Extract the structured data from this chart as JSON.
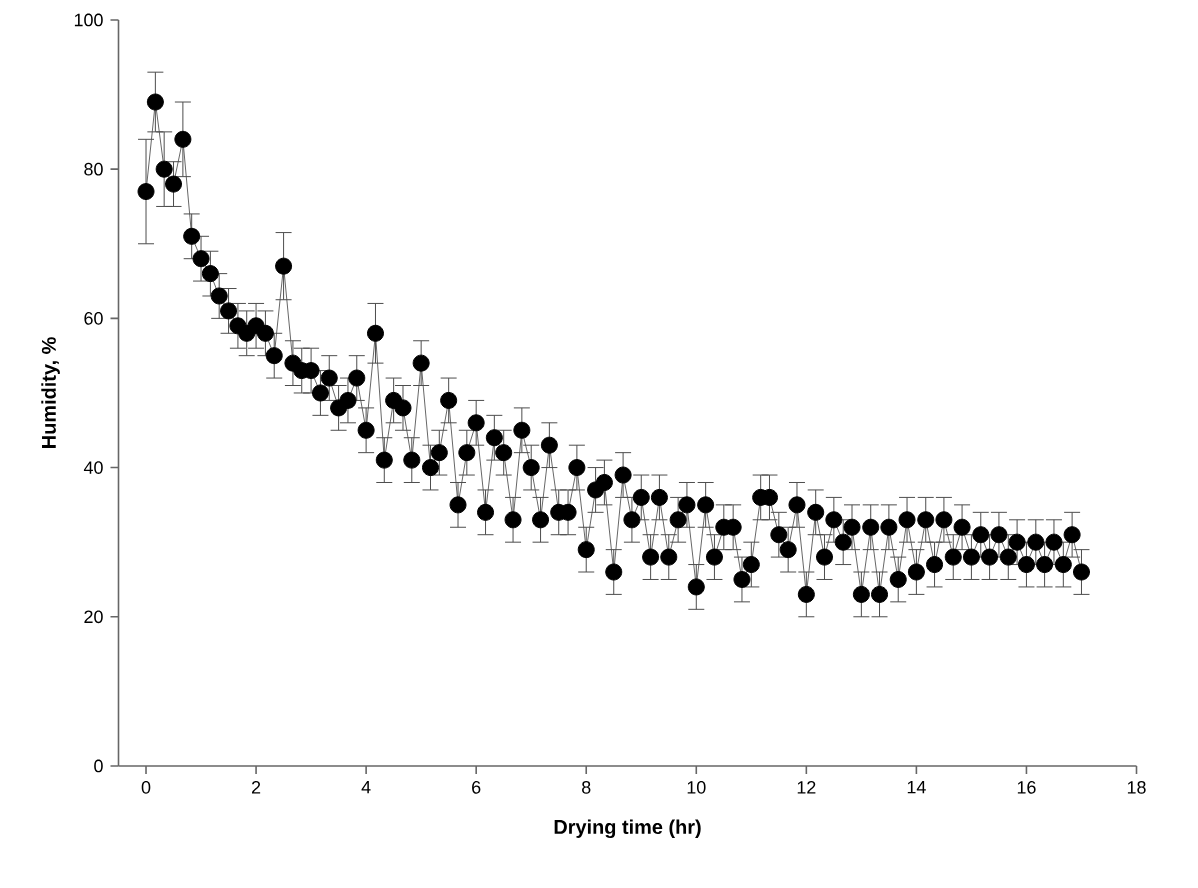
{
  "chart_data": {
    "type": "line",
    "xlabel": "Drying time (hr)",
    "ylabel": "Humidity, %",
    "x": [
      0.0,
      0.17,
      0.33,
      0.5,
      0.67,
      0.83,
      1.0,
      1.17,
      1.33,
      1.5,
      1.67,
      1.83,
      2.0,
      2.17,
      2.33,
      2.5,
      2.67,
      2.83,
      3.0,
      3.17,
      3.33,
      3.5,
      3.67,
      3.83,
      4.0,
      4.17,
      4.33,
      4.5,
      4.67,
      4.83,
      5.0,
      5.17,
      5.33,
      5.5,
      5.67,
      5.83,
      6.0,
      6.17,
      6.33,
      6.5,
      6.67,
      6.83,
      7.0,
      7.17,
      7.33,
      7.5,
      7.67,
      7.83,
      8.0,
      8.17,
      8.33,
      8.5,
      8.67,
      8.83,
      9.0,
      9.17,
      9.33,
      9.5,
      9.67,
      9.83,
      10.0,
      10.17,
      10.33,
      10.5,
      10.67,
      10.83,
      11.0,
      11.17,
      11.33,
      11.5,
      11.67,
      11.83,
      12.0,
      12.17,
      12.33,
      12.5,
      12.67,
      12.83,
      13.0,
      13.17,
      13.33,
      13.5,
      13.67,
      13.83,
      14.0,
      14.17,
      14.33,
      14.5,
      14.67,
      14.83,
      15.0,
      15.17,
      15.33,
      15.5,
      15.67,
      15.83,
      16.0,
      16.17,
      16.33,
      16.5,
      16.67,
      16.83,
      17.0
    ],
    "values": [
      77,
      89,
      80,
      78,
      84,
      71,
      68,
      66,
      63,
      61,
      59,
      58,
      59,
      58,
      55,
      67,
      54,
      53,
      53,
      50,
      52,
      48,
      49,
      52,
      45,
      58,
      41,
      49,
      48,
      41,
      54,
      40,
      42,
      49,
      35,
      42,
      46,
      34,
      44,
      42,
      33,
      45,
      40,
      33,
      43,
      34,
      34,
      40,
      29,
      37,
      38,
      26,
      39,
      33,
      36,
      28,
      36,
      28,
      33,
      35,
      24,
      35,
      28,
      32,
      32,
      25,
      27,
      36,
      36,
      31,
      29,
      35,
      23,
      34,
      28,
      33,
      30,
      32,
      23,
      32,
      23,
      32,
      25,
      33,
      26,
      33,
      27,
      33,
      28,
      32,
      28,
      31,
      28,
      31,
      28,
      30,
      27,
      30,
      27,
      30,
      27,
      31,
      26
    ],
    "errors": [
      7,
      4,
      5,
      3,
      5,
      3,
      3,
      3,
      3,
      3,
      3,
      3,
      3,
      3,
      3,
      4.5,
      3,
      3,
      3,
      3,
      3,
      3,
      3,
      3,
      3,
      4,
      3,
      3,
      3,
      3,
      3,
      3,
      3,
      3,
      3,
      3,
      3,
      3,
      3,
      3,
      3,
      3,
      3,
      3,
      3,
      3,
      3,
      3,
      3,
      3,
      3,
      3,
      3,
      3,
      3,
      3,
      3,
      3,
      3,
      3,
      3,
      3,
      3,
      3,
      3,
      3,
      3,
      3,
      3,
      3,
      3,
      3,
      3,
      3,
      3,
      3,
      3,
      3,
      3,
      3,
      3,
      3,
      3,
      3,
      3,
      3,
      3,
      3,
      3,
      3,
      3,
      3,
      3,
      3,
      3,
      3,
      3,
      3,
      3,
      3,
      3,
      3,
      3
    ],
    "color": "#000000",
    "marker": "circle",
    "line_style": "solid",
    "xlim": [
      -0.5,
      18
    ],
    "ylim": [
      0,
      100
    ],
    "xticks": [
      0,
      2,
      4,
      6,
      8,
      10,
      12,
      14,
      16,
      18
    ],
    "yticks": [
      0,
      20,
      40,
      60,
      80,
      100
    ]
  }
}
